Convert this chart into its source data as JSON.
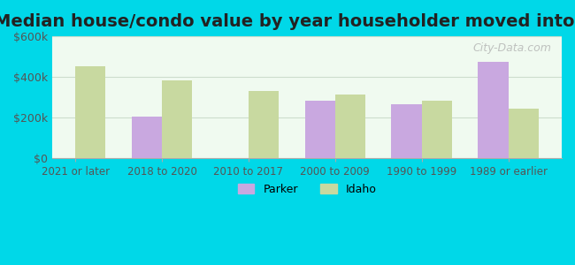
{
  "title": "Median house/condo value by year householder moved into unit",
  "categories": [
    "2021 or later",
    "2018 to 2020",
    "2010 to 2017",
    "2000 to 2009",
    "1990 to 1999",
    "1989 or earlier"
  ],
  "parker_values": [
    null,
    205000,
    null,
    285000,
    265000,
    475000
  ],
  "idaho_values": [
    455000,
    385000,
    330000,
    315000,
    285000,
    245000
  ],
  "parker_color": "#c9a8e0",
  "idaho_color": "#c8d9a0",
  "ylim": [
    0,
    600000
  ],
  "yticks": [
    0,
    200000,
    400000,
    600000
  ],
  "ytick_labels": [
    "$0",
    "$200k",
    "$400k",
    "$600k"
  ],
  "background_color": "#e8faf8",
  "plot_bg_start": "#f0faf0",
  "plot_bg_end": "#ffffff",
  "legend_labels": [
    "Parker",
    "Idaho"
  ],
  "title_fontsize": 14,
  "bar_width": 0.35,
  "outer_bg_color": "#00d8e8"
}
